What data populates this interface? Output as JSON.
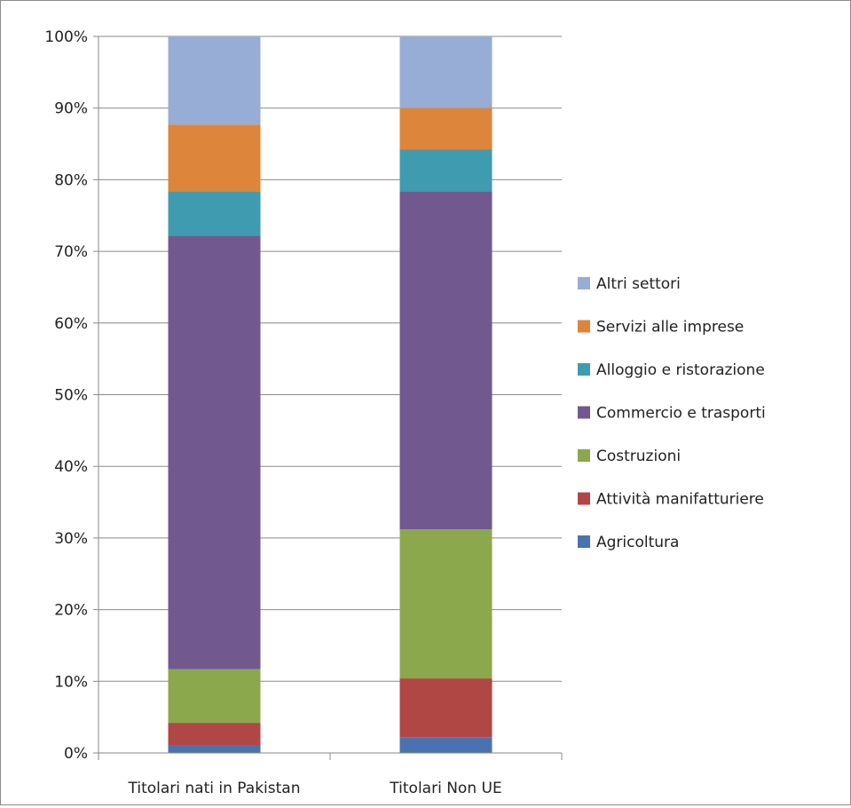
{
  "chart_data": {
    "type": "bar",
    "stacked": true,
    "percent": true,
    "categories": [
      "Titolari nati in Pakistan",
      "Titolari Non UE"
    ],
    "series": [
      {
        "name": "Agricoltura",
        "color": "#4a72b0",
        "values": [
          1.0,
          2.2
        ]
      },
      {
        "name": "Attività manifatturiere",
        "color": "#b04745",
        "values": [
          3.2,
          8.2
        ]
      },
      {
        "name": "Costruzioni",
        "color": "#8ba84c",
        "values": [
          7.5,
          20.8
        ]
      },
      {
        "name": "Commercio e trasporti",
        "color": "#71598f",
        "values": [
          60.5,
          47.2
        ]
      },
      {
        "name": "Alloggio e ristorazione",
        "color": "#3f9bb0",
        "values": [
          6.2,
          5.8
        ]
      },
      {
        "name": "Servizi alle imprese",
        "color": "#dd853b",
        "values": [
          9.3,
          5.8
        ]
      },
      {
        "name": "Altri settori",
        "color": "#97add5",
        "values": [
          12.3,
          10.0
        ]
      }
    ],
    "yticks": [
      "0%",
      "10%",
      "20%",
      "30%",
      "40%",
      "50%",
      "60%",
      "70%",
      "80%",
      "90%",
      "100%"
    ],
    "ylim": [
      0,
      100
    ],
    "title": "",
    "xlabel": "",
    "ylabel": "",
    "grid": true,
    "legend_position": "right"
  }
}
